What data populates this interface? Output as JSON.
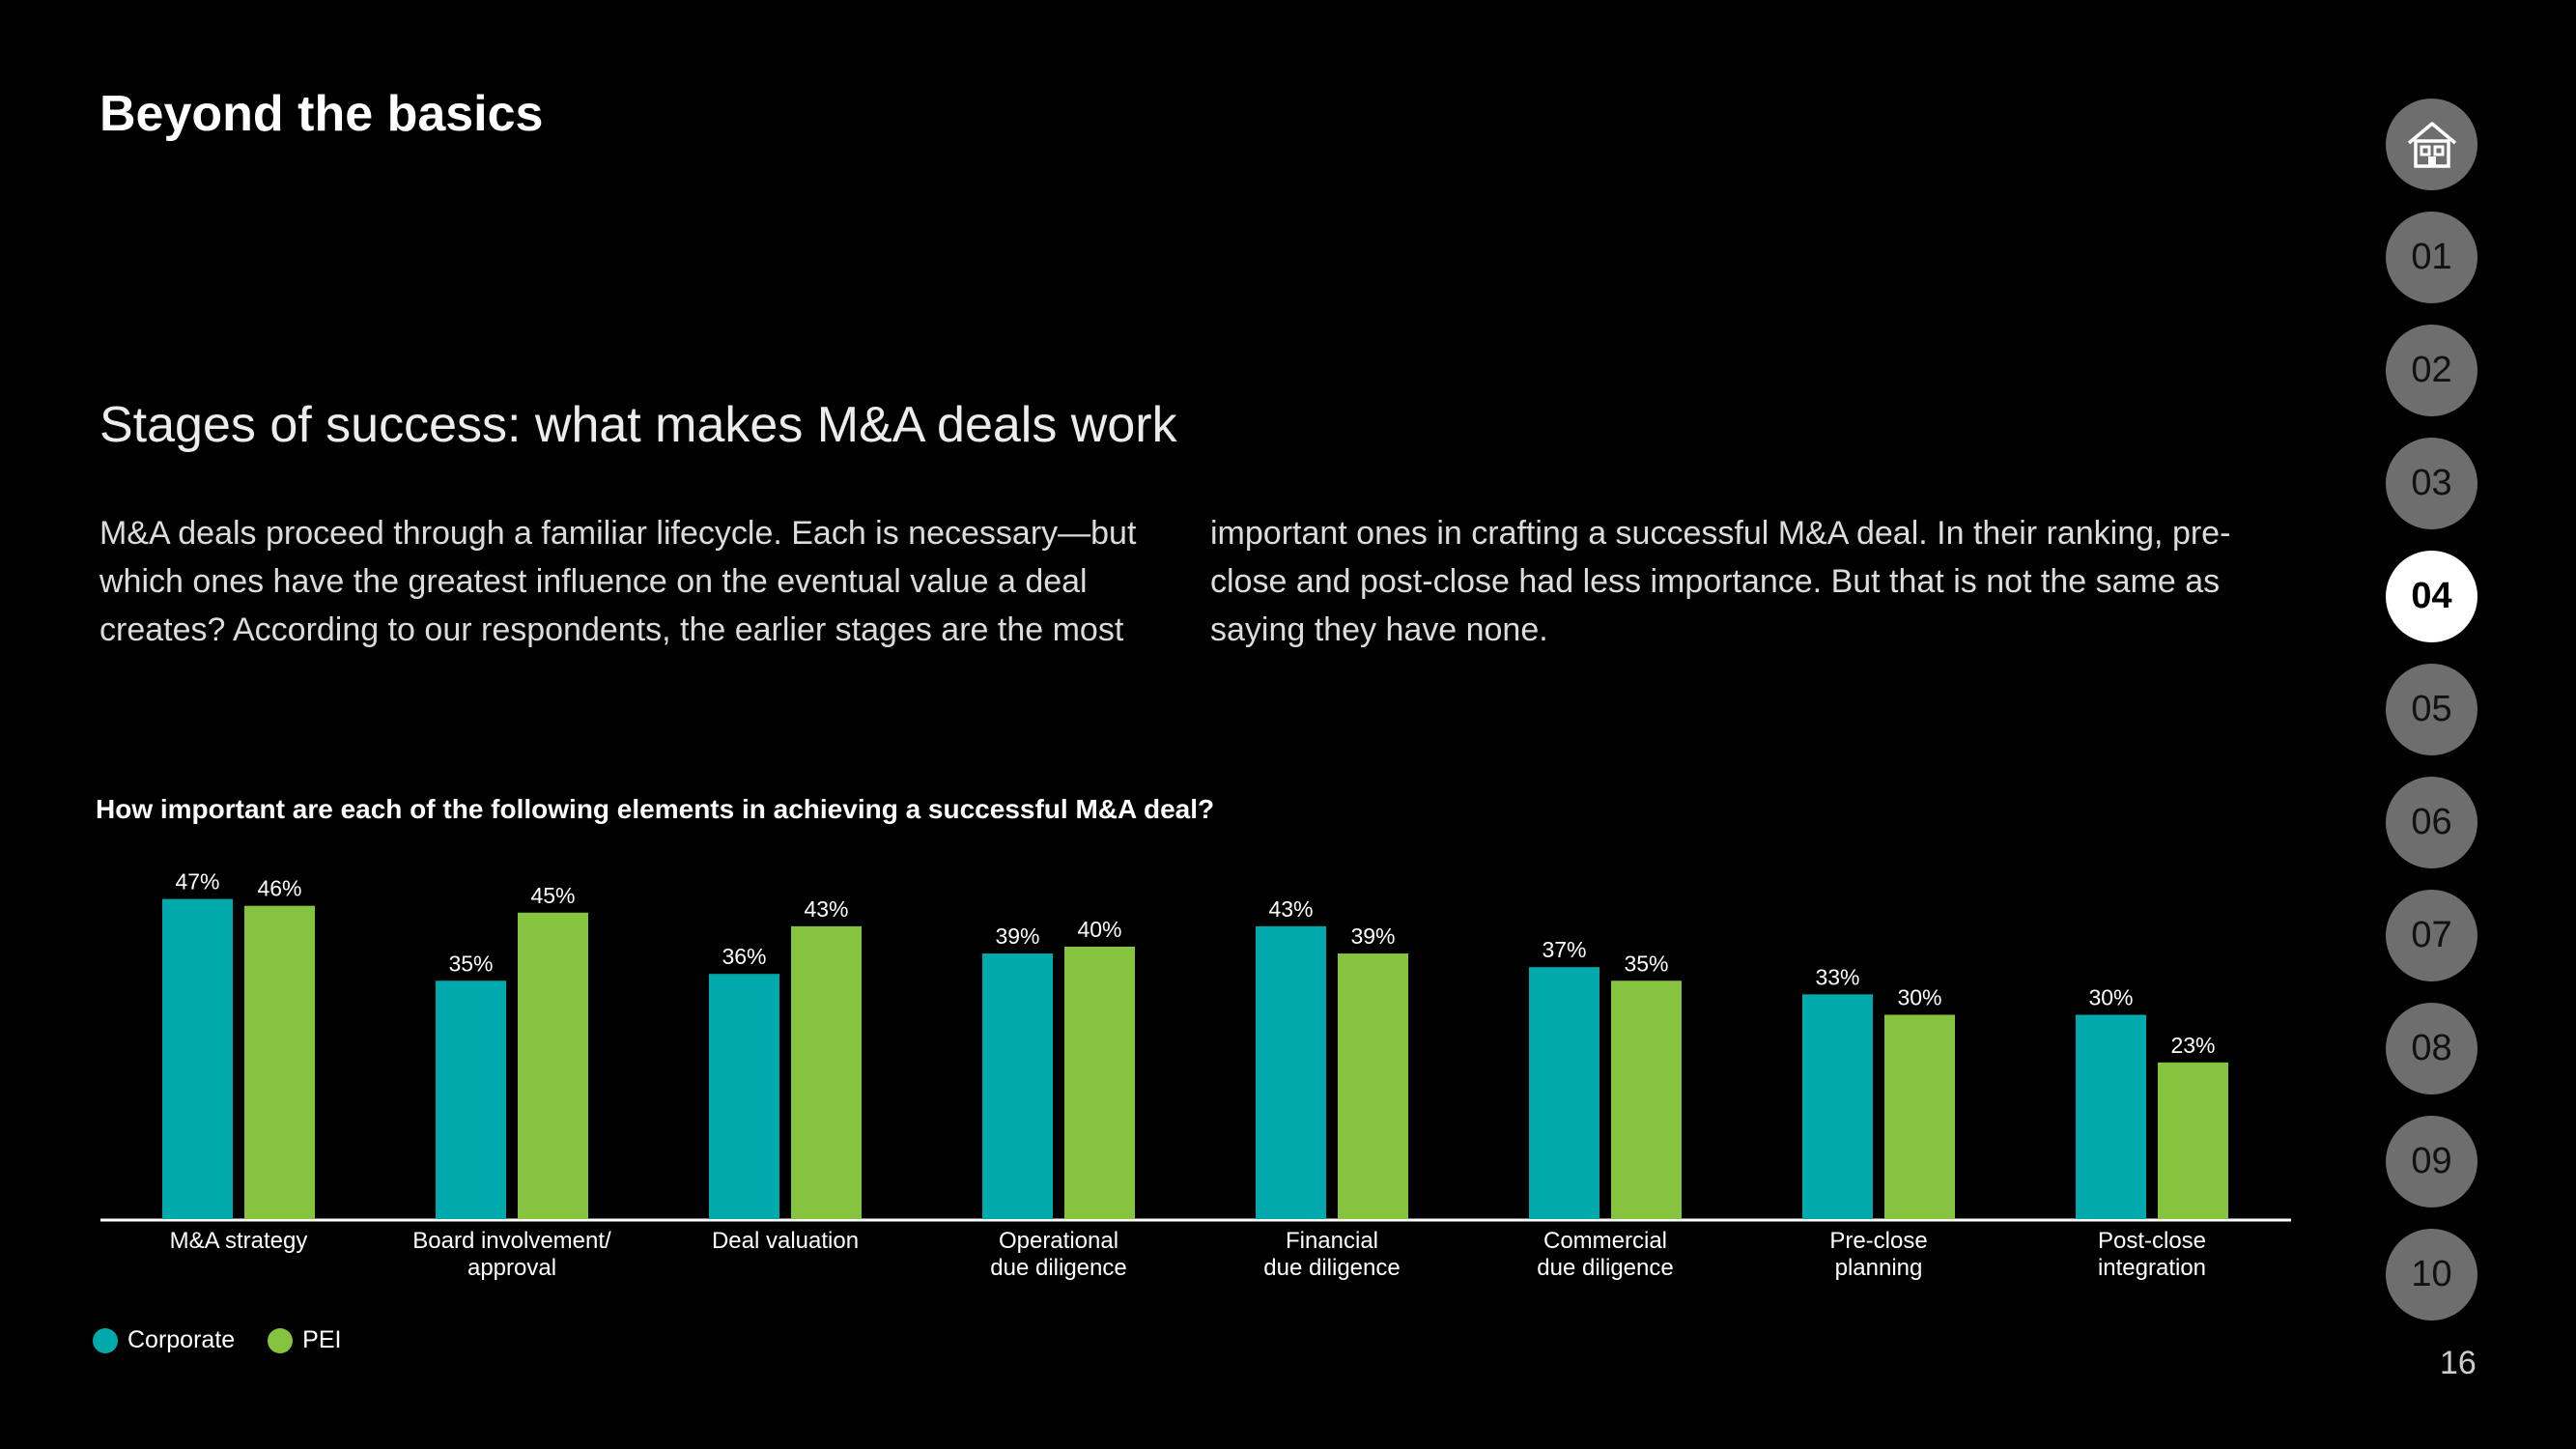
{
  "section_title": "Beyond the basics",
  "subtitle": "Stages of success: what makes M&A deals work",
  "paragraph_left": "M&A deals proceed through a familiar lifecycle. Each is necessary—but which ones have the greatest influence on the eventual value a deal creates? According to our respondents, the earlier stages are the most",
  "paragraph_right": "important ones in crafting a successful M&A deal. In their ranking, pre-close and post-close had less importance. But that is not the same as saying they have none.",
  "chart_data": {
    "type": "bar",
    "title": "How important are each of the following elements in achieving a successful M&A deal?",
    "categories": [
      [
        "M&A strategy"
      ],
      [
        "Board involvement/",
        "approval"
      ],
      [
        "Deal valuation"
      ],
      [
        "Operational",
        "due diligence"
      ],
      [
        "Financial",
        "due diligence"
      ],
      [
        "Commercial",
        "due diligence"
      ],
      [
        "Pre-close",
        "planning"
      ],
      [
        "Post-close",
        "integration"
      ]
    ],
    "series": [
      {
        "name": "Corporate",
        "color": "#00A9AC",
        "values": [
          47,
          35,
          36,
          39,
          43,
          37,
          33,
          30
        ]
      },
      {
        "name": "PEI",
        "color": "#86C440",
        "values": [
          46,
          45,
          43,
          40,
          39,
          35,
          30,
          23
        ]
      }
    ],
    "value_suffix": "%",
    "ylim": [
      0,
      50
    ],
    "legend": "bottom-left"
  },
  "nav": {
    "home_icon": "home-icon",
    "items": [
      "01",
      "02",
      "03",
      "04",
      "05",
      "06",
      "07",
      "08",
      "09",
      "10"
    ],
    "active": "04"
  },
  "page_number": "16"
}
